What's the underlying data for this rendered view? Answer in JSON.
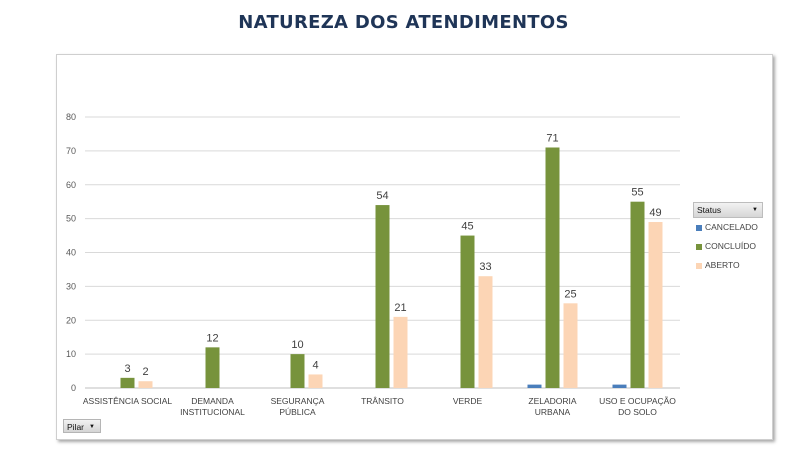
{
  "title": "NATUREZA DOS ATENDIMENTOS",
  "legend": {
    "header": "Status",
    "items": [
      {
        "label": "CANCELADO",
        "color": "#4a7ebb"
      },
      {
        "label": "CONCLUÍDO",
        "color": "#77933c"
      },
      {
        "label": "ABERTO",
        "color": "#fcd5b5"
      }
    ]
  },
  "pilar_label": "Pilar",
  "chart_data": {
    "type": "bar",
    "title": "NATUREZA DOS ATENDIMENTOS",
    "ylim": [
      0,
      80
    ],
    "yticks": [
      0,
      10,
      20,
      30,
      40,
      50,
      60,
      70,
      80
    ],
    "grid": true,
    "legend_position": "right",
    "categories": [
      [
        "ASSISTÊNCIA SOCIAL"
      ],
      [
        "DEMANDA",
        "INSTITUCIONAL"
      ],
      [
        "SEGURANÇA",
        "PÚBLICA"
      ],
      [
        "TRÂNSITO"
      ],
      [
        "VERDE"
      ],
      [
        "ZELADORIA",
        "URBANA"
      ],
      [
        "USO E OCUPAÇÃO",
        "DO SOLO"
      ]
    ],
    "series": [
      {
        "name": "CANCELADO",
        "color": "#4a7ebb",
        "values": [
          0,
          0,
          0,
          0,
          0,
          1,
          1
        ],
        "labels": [
          false,
          false,
          false,
          false,
          false,
          false,
          false
        ]
      },
      {
        "name": "CONCLUÍDO",
        "color": "#77933c",
        "values": [
          3,
          12,
          10,
          54,
          45,
          71,
          55
        ],
        "labels": [
          true,
          true,
          true,
          true,
          true,
          true,
          true
        ]
      },
      {
        "name": "ABERTO",
        "color": "#fcd5b5",
        "values": [
          2,
          0,
          4,
          21,
          33,
          25,
          49
        ],
        "labels": [
          true,
          false,
          true,
          true,
          true,
          true,
          true
        ]
      }
    ]
  }
}
